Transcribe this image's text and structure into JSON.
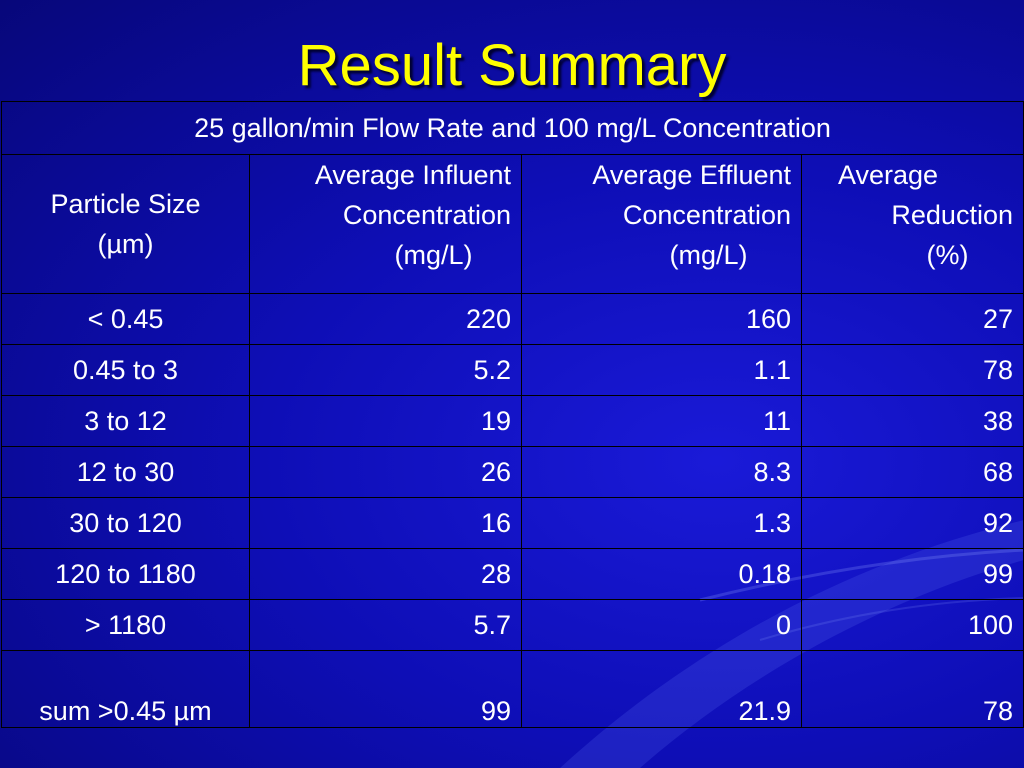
{
  "slide": {
    "title": "Result Summary"
  },
  "table": {
    "caption": "25 gallon/min Flow Rate and 100 mg/L Concentration",
    "headers": [
      [
        "Particle Size",
        "(µm)"
      ],
      [
        "Average Influent",
        "Concentration",
        "(mg/L)"
      ],
      [
        "Average Effluent",
        "Concentration",
        "(mg/L)"
      ],
      [
        "Average",
        "Reduction",
        "(%)"
      ]
    ],
    "rows": [
      [
        "< 0.45",
        "220",
        "160",
        "27"
      ],
      [
        "0.45 to 3",
        "5.2",
        "1.1",
        "78"
      ],
      [
        "3 to 12",
        "19",
        "11",
        "38"
      ],
      [
        "12 to 30",
        "26",
        "8.3",
        "68"
      ],
      [
        "30 to 120",
        "16",
        "1.3",
        "92"
      ],
      [
        "120 to 1180",
        "28",
        "0.18",
        "99"
      ],
      [
        "> 1180",
        "5.7",
        "0",
        "100"
      ]
    ],
    "sum_row": [
      "sum >0.45 µm",
      "99",
      "21.9",
      "78"
    ]
  },
  "colors": {
    "background": "#1010c0",
    "title": "#ffff00",
    "text": "#ffffff",
    "grid": "#000000"
  }
}
